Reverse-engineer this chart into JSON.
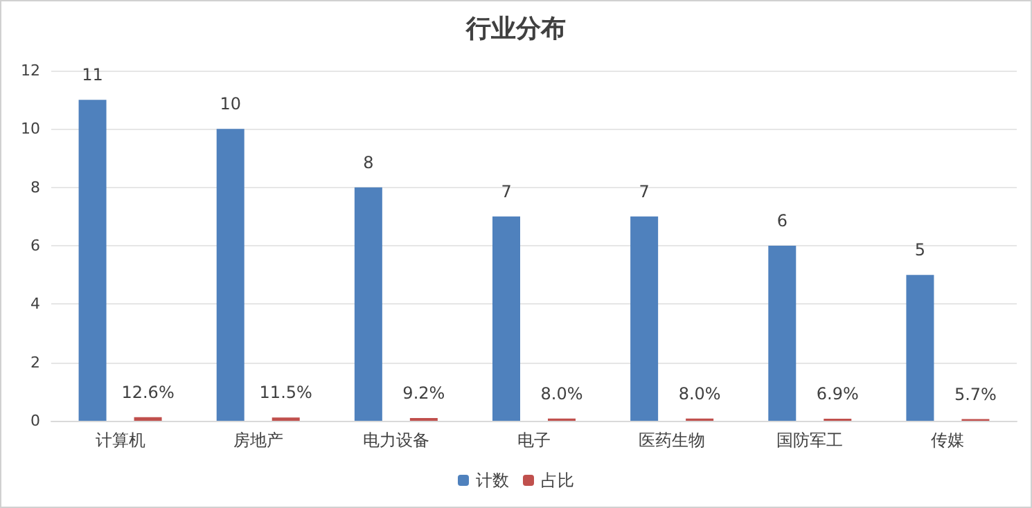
{
  "chart_data": {
    "type": "bar",
    "title": "行业分布",
    "categories": [
      "计算机",
      "房地产",
      "电力设备",
      "电子",
      "医药生物",
      "国防军工",
      "传媒"
    ],
    "series": [
      {
        "name": "计数",
        "color": "#4f81bd",
        "values": [
          11,
          10,
          8,
          7,
          7,
          6,
          5
        ],
        "value_labels": [
          "11",
          "10",
          "8",
          "7",
          "7",
          "6",
          "5"
        ]
      },
      {
        "name": "占比",
        "color": "#c0504d",
        "values": [
          0.126,
          0.115,
          0.092,
          0.08,
          0.08,
          0.069,
          0.057
        ],
        "value_labels": [
          "12.6%",
          "11.5%",
          "9.2%",
          "8.0%",
          "8.0%",
          "6.9%",
          "5.7%"
        ]
      }
    ],
    "ylim": [
      0,
      12
    ],
    "yticks": [
      0,
      2,
      4,
      6,
      8,
      10,
      12
    ],
    "grid": "y",
    "legend": "bottom"
  }
}
